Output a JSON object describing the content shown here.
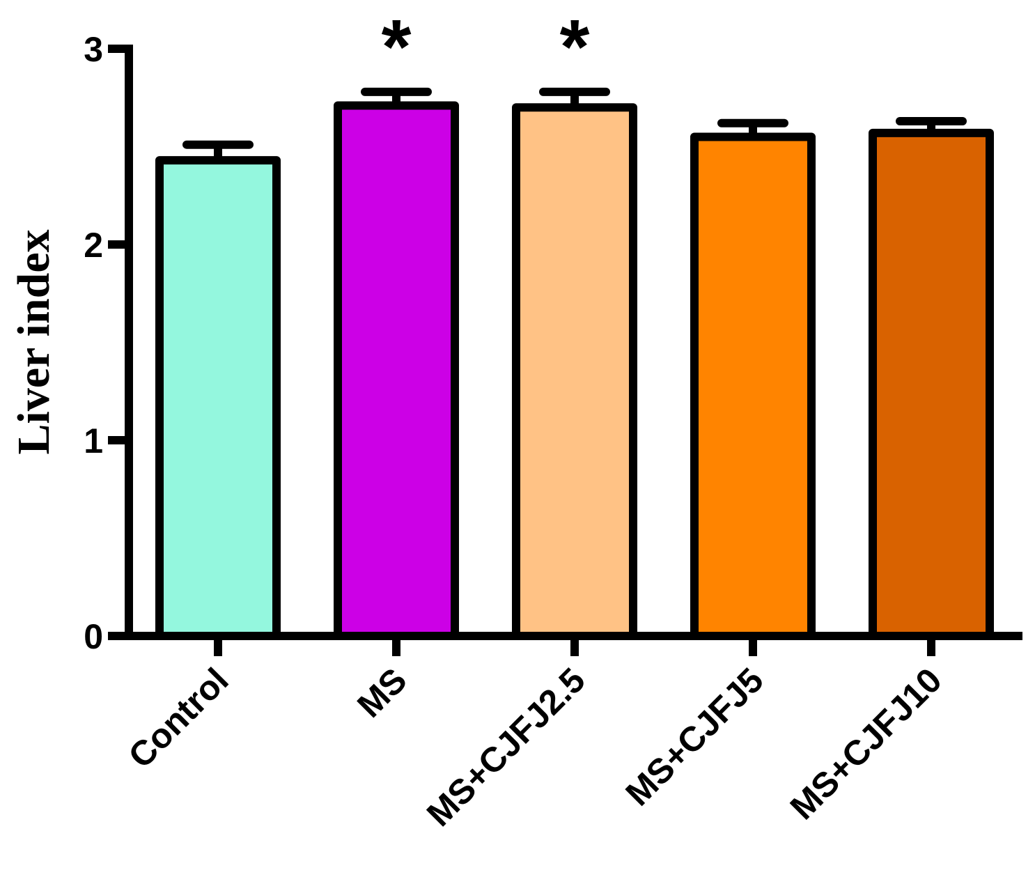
{
  "chart_data": {
    "type": "bar",
    "y_label": "Liver index",
    "categories": [
      "Control",
      "MS",
      "MS+CJFJ2.5",
      "MS+CJFJ5",
      "MS+CJFJ10"
    ],
    "values": [
      2.43,
      2.71,
      2.7,
      2.55,
      2.57
    ],
    "errors": [
      0.08,
      0.07,
      0.08,
      0.07,
      0.06
    ],
    "colors": [
      "#94f7de",
      "#cc00e6",
      "#ffc285",
      "#ff8400",
      "#d96200"
    ],
    "significance": [
      null,
      "*",
      "*",
      null,
      null
    ],
    "ylim": [
      0,
      3
    ],
    "yticks": [
      0,
      1,
      2,
      3
    ]
  }
}
